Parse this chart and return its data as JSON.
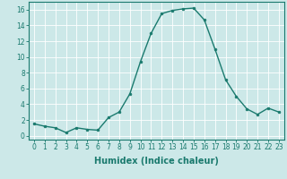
{
  "x": [
    0,
    1,
    2,
    3,
    4,
    5,
    6,
    7,
    8,
    9,
    10,
    11,
    12,
    13,
    14,
    15,
    16,
    17,
    18,
    19,
    20,
    21,
    22,
    23
  ],
  "y": [
    1.5,
    1.2,
    1.0,
    0.4,
    1.0,
    0.8,
    0.7,
    2.3,
    3.0,
    5.3,
    9.4,
    13.0,
    15.5,
    15.9,
    16.1,
    16.2,
    14.7,
    11.0,
    7.1,
    5.0,
    3.4,
    2.7,
    3.5,
    3.0
  ],
  "line_color": "#1a7a6e",
  "marker": "o",
  "marker_size": 2.0,
  "bg_color": "#cce8e8",
  "grid_color": "#ffffff",
  "xlabel": "Humidex (Indice chaleur)",
  "ylim": [
    -0.5,
    17.0
  ],
  "xlim": [
    -0.5,
    23.5
  ],
  "yticks": [
    0,
    2,
    4,
    6,
    8,
    10,
    12,
    14,
    16
  ],
  "xticks": [
    0,
    1,
    2,
    3,
    4,
    5,
    6,
    7,
    8,
    9,
    10,
    11,
    12,
    13,
    14,
    15,
    16,
    17,
    18,
    19,
    20,
    21,
    22,
    23
  ],
  "tick_label_fontsize": 5.5,
  "xlabel_fontsize": 7.0,
  "linewidth": 1.0
}
